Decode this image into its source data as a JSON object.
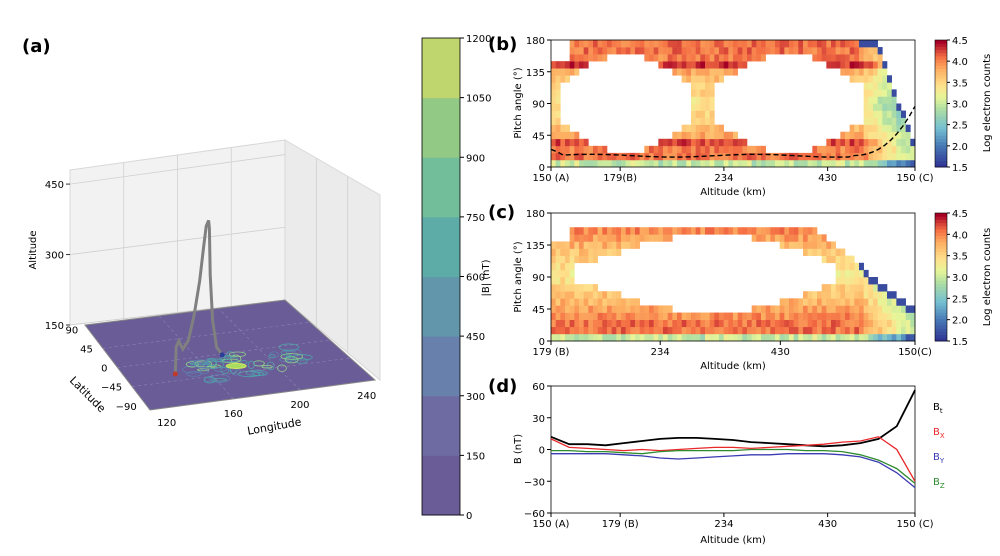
{
  "chart_data": [
    {
      "panel": "(a)",
      "type": "line",
      "chart_kind": "3d-field-line-over-contour-map",
      "axes": {
        "x": {
          "label": "Longitude",
          "ticks": [
            "120",
            "160",
            "200",
            "240"
          ]
        },
        "y": {
          "label": "Latitude",
          "ticks": [
            "−90",
            "−45",
            "0",
            "45",
            "90"
          ]
        },
        "z": {
          "label": "Altitude",
          "ticks": [
            "150",
            "300",
            "450"
          ]
        }
      },
      "field_line": {
        "color": "#808080",
        "longitude": [
          140,
          141,
          143,
          146,
          150,
          154,
          158,
          161,
          163,
          165,
          166,
          167,
          169,
          172,
          176
        ],
        "latitude": [
          -30,
          -28,
          -26,
          -24,
          -22,
          -20,
          -18,
          -16,
          -14,
          -12,
          -10,
          -8,
          -6,
          -4,
          -2
        ],
        "altitude": [
          150,
          205,
          215,
          195,
          210,
          260,
          330,
          400,
          440,
          450,
          430,
          330,
          230,
          170,
          150
        ],
        "start_marker_color": "#c0392b",
        "end_marker_color": "#2c3e99"
      },
      "colorbar": {
        "label": "|B| (nT)",
        "ticks": [
          "0",
          "150",
          "300",
          "450",
          "600",
          "750",
          "900",
          "1050",
          "1200"
        ],
        "colors": [
          "#6a5c96",
          "#6e6ba2",
          "#6881ac",
          "#6297ab",
          "#5eaca8",
          "#72bd9a",
          "#92c985",
          "#bfd56d"
        ]
      }
    },
    {
      "panel": "(b)",
      "type": "heatmap",
      "xlabel": "Altitude (km)",
      "ylabel": "Pitch angle (°)",
      "xticks": [
        "150 (A)",
        "179(B)",
        "234",
        "430",
        "150 (C)"
      ],
      "yticks": [
        "0",
        "45",
        "90",
        "135",
        "180"
      ],
      "ylim": [
        0,
        180
      ],
      "colorbar": {
        "label": "Log electron counts",
        "ticks": [
          "1.5",
          "2.0",
          "2.5",
          "3.0",
          "3.5",
          "4.0",
          "4.5"
        ],
        "range": [
          1.5,
          4.5
        ]
      },
      "dashed_line_color": "#000000"
    },
    {
      "panel": "(c)",
      "type": "heatmap",
      "xlabel": "Altitude (km)",
      "ylabel": "Pitch angle (°)",
      "xticks": [
        "179 (B)",
        "234",
        "430",
        "150(C)"
      ],
      "yticks": [
        "0",
        "45",
        "90",
        "135",
        "180"
      ],
      "ylim": [
        0,
        180
      ],
      "colorbar": {
        "label": "Log electron counts",
        "ticks": [
          "1.5",
          "2.0",
          "2.5",
          "3.0",
          "3.5",
          "4.0",
          "4.5"
        ],
        "range": [
          1.5,
          4.5
        ]
      }
    },
    {
      "panel": "(d)",
      "type": "line",
      "xlabel": "Altitude (km)",
      "ylabel": "B (nT)",
      "xticks": [
        "150 (A)",
        "179 (B)",
        "234",
        "430",
        "150 (C)"
      ],
      "yticks": [
        "−60",
        "−30",
        "0",
        "30",
        "60"
      ],
      "ylim": [
        -60,
        60
      ],
      "x": [
        0,
        5,
        10,
        15,
        20,
        25,
        30,
        35,
        40,
        45,
        50,
        55,
        60,
        65,
        70,
        75,
        80,
        85,
        90,
        95,
        100
      ],
      "series": [
        {
          "name": "B_t",
          "color": "#000000",
          "values": [
            12,
            5,
            5,
            4,
            6,
            8,
            10,
            11,
            11,
            10,
            9,
            7,
            6,
            5,
            4,
            3,
            4,
            6,
            10,
            22,
            56
          ]
        },
        {
          "name": "B_X",
          "color": "#e8282b",
          "values": [
            10,
            2,
            1,
            0,
            -1,
            0,
            -1,
            0,
            1,
            2,
            2,
            1,
            2,
            3,
            4,
            5,
            7,
            8,
            12,
            0,
            -30
          ]
        },
        {
          "name": "B_Y",
          "color": "#3b3bb3",
          "values": [
            -4,
            -4,
            -4,
            -4,
            -5,
            -6,
            -8,
            -9,
            -8,
            -7,
            -6,
            -5,
            -5,
            -4,
            -4,
            -4,
            -5,
            -7,
            -12,
            -22,
            -36
          ]
        },
        {
          "name": "B_Z",
          "color": "#2e8b2e",
          "values": [
            -1,
            -1,
            -2,
            -2,
            -3,
            -4,
            -2,
            -1,
            -1,
            -1,
            -1,
            0,
            0,
            0,
            -1,
            -1,
            -2,
            -5,
            -10,
            -18,
            -32
          ]
        }
      ],
      "legend": {
        "labels": [
          {
            "base": "B",
            "sub": "t"
          },
          {
            "base": "B",
            "sub": "X"
          },
          {
            "base": "B",
            "sub": "Y"
          },
          {
            "base": "B",
            "sub": "Z"
          }
        ],
        "placement": "right"
      }
    }
  ],
  "panel_labels": {
    "a": "(a)",
    "b": "(b)",
    "c": "(c)",
    "d": "(d)"
  }
}
